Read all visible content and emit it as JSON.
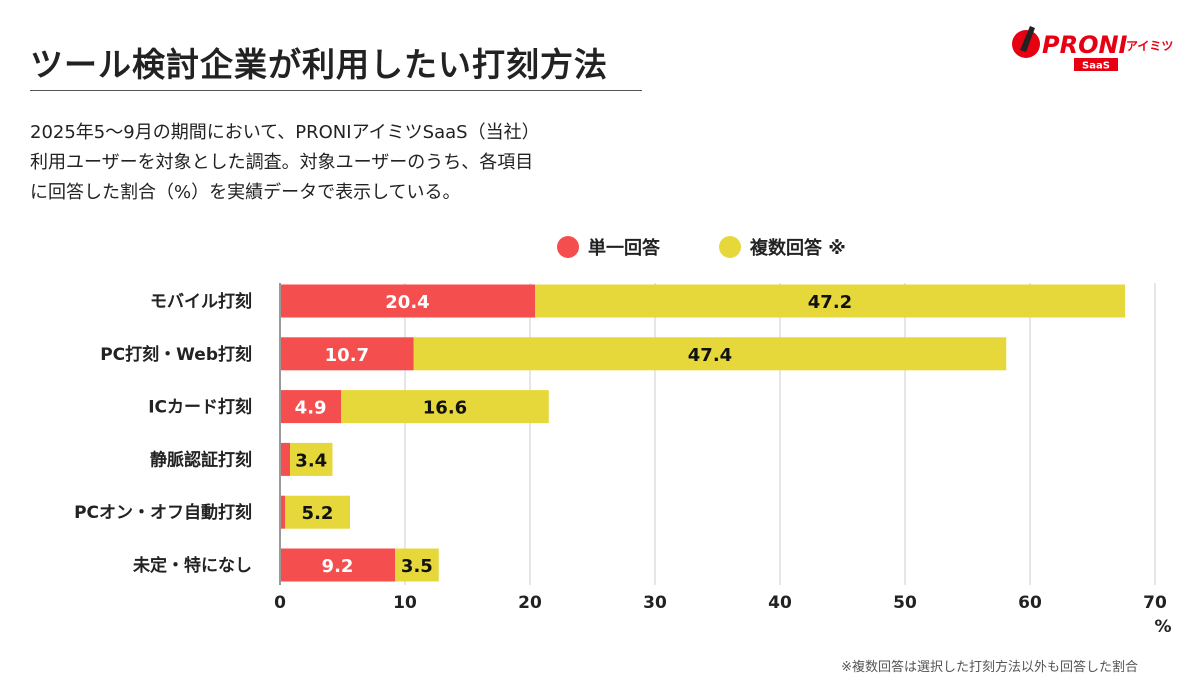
{
  "title": "ツール検討企業が利用したい打刻方法",
  "description": [
    "2025年5〜9月の期間において、PRONIアイミツSaaS（当社）",
    "利用ユーザーを対象とした調査。対象ユーザーのうち、各項目",
    "に回答した割合（%）を実績データで表示している。"
  ],
  "logo": {
    "main": "PRONI",
    "sub": "アイミツ",
    "badge": "SaaS"
  },
  "footnote": "※複数回答は選択した打刻方法以外も回答した割合",
  "colors": {
    "single": "#f54e4e",
    "multiple": "#e6d83a",
    "brand": "#e60012"
  },
  "chart_data": {
    "type": "bar",
    "orientation": "horizontal",
    "stacked": true,
    "categories": [
      "モバイル打刻",
      "PC打刻・Web打刻",
      "ICカード打刻",
      "静脈認証打刻",
      "PCオン・オフ自動打刻",
      "未定・特になし"
    ],
    "series": [
      {
        "name": "単一回答",
        "values": [
          20.4,
          10.7,
          4.9,
          0.8,
          0.4,
          9.2
        ],
        "labels": [
          "20.4",
          "10.7",
          "4.9",
          "",
          "",
          "9.2"
        ]
      },
      {
        "name": "複数回答 ※",
        "values": [
          47.2,
          47.4,
          16.6,
          3.4,
          5.2,
          3.5
        ],
        "labels": [
          "47.2",
          "47.4",
          "16.6",
          "3.4",
          "5.2",
          "3.5"
        ]
      }
    ],
    "xlim": [
      0,
      70
    ],
    "xticks": [
      "0",
      "10",
      "20",
      "30",
      "40",
      "50",
      "60",
      "70"
    ],
    "xunit": "%",
    "grid": true,
    "legend": "top"
  }
}
